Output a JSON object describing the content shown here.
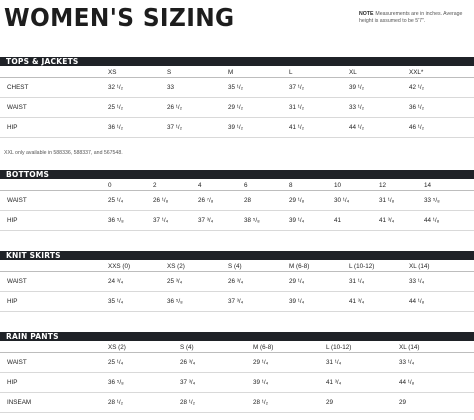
{
  "title": "WOMEN'S SIZING",
  "note": {
    "label": "NOTE",
    "text": "Measurements are in inches. Average height is assumed to be 5'7\"."
  },
  "footnote": "XXL only available in 588336, 588337, and 567548.",
  "sections": [
    {
      "id": "tops",
      "title": "TOPS & JACKETS",
      "columns": [
        "XS",
        "S",
        "M",
        "L",
        "XL",
        "XXL*"
      ],
      "rows": [
        {
          "label": "CHEST",
          "values": [
            "32 ¹/₂",
            "33",
            "35 ¹/₂",
            "37 ¹/₂",
            "39 ¹/₂",
            "42 ¹/₂"
          ]
        },
        {
          "label": "WAIST",
          "values": [
            "25 ¹/₂",
            "26 ¹/₂",
            "29 ¹/₂",
            "31 ¹/₂",
            "33 ¹/₂",
            "36 ¹/₂"
          ]
        },
        {
          "label": "HIP",
          "values": [
            "36 ¹/₂",
            "37 ¹/₂",
            "39 ¹/₂",
            "41 ¹/₂",
            "44 ¹/₂",
            "46 ¹/₂"
          ]
        }
      ]
    },
    {
      "id": "bottoms",
      "title": "BOTTOMS",
      "columns": [
        "0",
        "2",
        "4",
        "6",
        "8",
        "10",
        "12",
        "14"
      ],
      "rows": [
        {
          "label": "WAIST",
          "values": [
            "25 ¹/₄",
            "26 ¹/₈",
            "26 ⁷/₈",
            "28",
            "29 ¹/₈",
            "30 ¹/₄",
            "31 ¹/₈",
            "33 ⁵/₈"
          ]
        },
        {
          "label": "HIP",
          "values": [
            "36 ⁵/₈",
            "37 ¹/₄",
            "37 ³/₄",
            "38 ⁵/₈",
            "39 ¹/₄",
            "41",
            "41 ³/₄",
            "44 ¹/₈"
          ]
        }
      ]
    },
    {
      "id": "knit-skirts",
      "title": "KNIT SKIRTS",
      "columns": [
        "XXS (0)",
        "XS (2)",
        "S (4)",
        "M (6-8)",
        "L (10-12)",
        "XL (14)"
      ],
      "rows": [
        {
          "label": "WAIST",
          "values": [
            "24 ³/₄",
            "25 ³/₄",
            "26 ³/₄",
            "29 ¹/₄",
            "31 ¹/₄",
            "33 ¹/₄"
          ]
        },
        {
          "label": "HIP",
          "values": [
            "35 ¹/₄",
            "36 ⁵/₈",
            "37 ³/₄",
            "39 ¹/₄",
            "41 ³/₄",
            "44 ¹/₈"
          ]
        }
      ]
    },
    {
      "id": "rain-pants",
      "title": "RAIN PANTS",
      "columns": [
        "XS (2)",
        "S (4)",
        "M (6-8)",
        "L (10-12)",
        "XL (14)"
      ],
      "rows": [
        {
          "label": "WAIST",
          "values": [
            "25 ¹/₄",
            "26 ³/₄",
            "29 ¹/₄",
            "31 ¹/₄",
            "33 ¹/₄"
          ]
        },
        {
          "label": "HIP",
          "values": [
            "36 ⁵/₈",
            "37 ³/₄",
            "39 ¹/₄",
            "41 ³/₄",
            "44 ¹/₈"
          ]
        },
        {
          "label": "INSEAM",
          "values": [
            "28 ¹/₂",
            "28 ¹/₂",
            "28 ¹/₂",
            "29",
            "29"
          ]
        }
      ]
    }
  ]
}
